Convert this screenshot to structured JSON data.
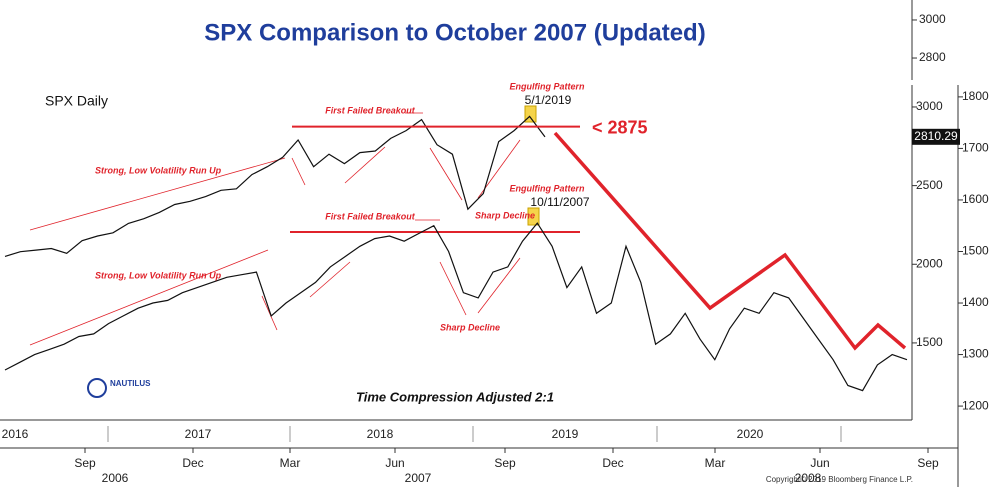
{
  "chart_data": {
    "type": "line",
    "title": "SPX Comparison to October 2007 (Updated)",
    "series": [
      {
        "name": "2019",
        "color": "#111111",
        "values": [
          2050,
          2080,
          2090,
          2100,
          2070,
          2150,
          2180,
          2200,
          2260,
          2290,
          2330,
          2380,
          2400,
          2430,
          2470,
          2480,
          2570,
          2620,
          2680,
          2790,
          2620,
          2700,
          2640,
          2710,
          2720,
          2800,
          2850,
          2920,
          2760,
          2700,
          2350,
          2450,
          2780,
          2850,
          2940,
          2810
        ],
        "last_price": 2810.29
      },
      {
        "name": "2007",
        "color": "#111111",
        "axis": "y2",
        "values": [
          1270,
          1285,
          1300,
          1310,
          1320,
          1335,
          1340,
          1360,
          1375,
          1390,
          1400,
          1405,
          1420,
          1430,
          1440,
          1450,
          1455,
          1460,
          1375,
          1400,
          1420,
          1440,
          1470,
          1490,
          1510,
          1525,
          1530,
          1520,
          1535,
          1550,
          1500,
          1420,
          1410,
          1460,
          1470,
          1520,
          1555,
          1510,
          1430,
          1470,
          1380,
          1400,
          1510,
          1440,
          1320,
          1340,
          1380,
          1330,
          1290,
          1350,
          1390,
          1380,
          1420,
          1410,
          1370,
          1330,
          1290,
          1240,
          1230,
          1280,
          1300,
          1290
        ]
      }
    ],
    "ylim": [
      1010,
      3680
    ],
    "yticks": [
      1500,
      2000,
      2500,
      3000
    ],
    "y2lim": [
      1173,
      1988
    ],
    "y2ticks": [
      1200,
      1300,
      1400,
      1500,
      1600,
      1700,
      1800
    ],
    "y3lim": [
      2695,
      3105
    ],
    "y3ticks": [
      2800,
      3000
    ],
    "reference": {
      "value": 2875,
      "label": "< 2875"
    },
    "x_top_labels": [
      "2016",
      "2017",
      "2018",
      "2019",
      "2020"
    ],
    "x_bottom_labels": [
      "Sep",
      "Dec",
      "Mar",
      "Jun",
      "Sep",
      "Dec",
      "Mar",
      "Jun",
      "Sep"
    ],
    "x_bottom_years": [
      "2006",
      "2007",
      "2008"
    ],
    "annotations": [
      "SPX Daily",
      "Strong, Low Volatility Run Up",
      "First Failed Breakout",
      "Engulfing Pattern",
      "5/1/2019",
      "Sharp Decline",
      "Strong, Low Volatility Run Up",
      "First Failed Breakout",
      "Engulfing Pattern",
      "10/11/2007",
      "Sharp Decline",
      "Time Compression Adjusted 2:1",
      "NAUTILUS",
      "Copyright© 2019 Bloomberg Finance L.P."
    ]
  }
}
